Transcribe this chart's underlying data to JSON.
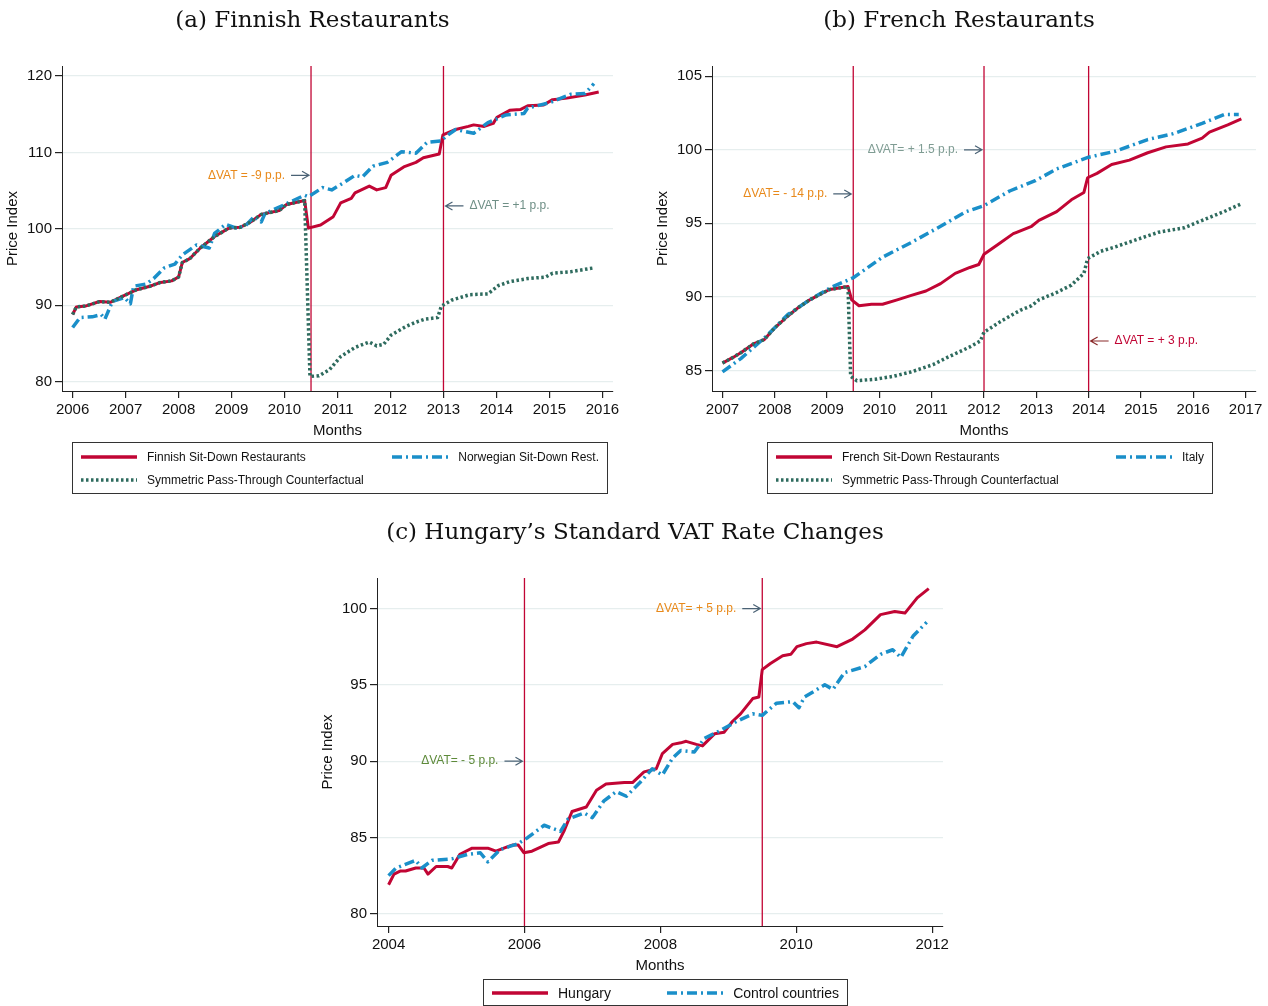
{
  "chart_data": [
    {
      "type": "line",
      "title": "(a) Finnish Restaurants",
      "xlabel": "Months",
      "ylabel": "Price Index",
      "xlim": [
        2005.8,
        2016.2
      ],
      "xticks": [
        2006,
        2007,
        2008,
        2009,
        2010,
        2011,
        2012,
        2013,
        2014,
        2015,
        2016
      ],
      "ylim": [
        78.8,
        121.3
      ],
      "yticks": [
        80,
        90,
        100,
        110,
        120
      ],
      "grid": "y",
      "legend": "bottom",
      "marker": "none",
      "ref_lines": [
        {
          "axis": "x",
          "value": 2010.5,
          "color": "#c10534"
        },
        {
          "axis": "x",
          "value": 2013,
          "color": "#c10534"
        }
      ],
      "annotations": [
        {
          "text": "ΔVAT = -9 p.p.",
          "x": 2010.5,
          "y": 107
        },
        {
          "text": "ΔVAT = +1 p.p.",
          "x": 2013,
          "y": 103
        }
      ],
      "series": [
        {
          "name": "Finnish Sit-Down Restaurants",
          "color": "#c10534",
          "line_style": "solid",
          "x": [
            2006.0,
            2006.07,
            2006.24,
            2006.51,
            2006.71,
            2006.92,
            2007.19,
            2007.46,
            2007.66,
            2007.87,
            2008.0,
            2008.07,
            2008.21,
            2008.41,
            2008.68,
            2008.95,
            2009.16,
            2009.36,
            2009.56,
            2009.9,
            2010.04,
            2010.38,
            2010.45,
            2010.68,
            2010.92,
            2011.06,
            2011.26,
            2011.33,
            2011.6,
            2011.74,
            2011.91,
            2012.01,
            2012.25,
            2012.48,
            2012.62,
            2012.92,
            2012.99,
            2013.23,
            2013.47,
            2013.57,
            2013.77,
            2013.94,
            2014.01,
            2014.25,
            2014.45,
            2014.59,
            2014.89,
            2015.06,
            2015.33,
            2015.67,
            2015.93
          ],
          "values": [
            88.8,
            89.8,
            89.9,
            90.5,
            90.4,
            91.1,
            92.0,
            92.5,
            93.0,
            93.2,
            93.7,
            95.6,
            96.1,
            97.5,
            99.0,
            100.1,
            100.2,
            100.9,
            101.9,
            102.4,
            103.2,
            103.7,
            100.1,
            100.5,
            101.6,
            103.4,
            104.0,
            104.7,
            105.6,
            105.1,
            105.4,
            107.0,
            108.1,
            108.7,
            109.3,
            109.8,
            112.3,
            113.0,
            113.4,
            113.6,
            113.4,
            113.8,
            114.6,
            115.5,
            115.6,
            116.1,
            116.2,
            116.9,
            117.1,
            117.5,
            117.9
          ]
        },
        {
          "name": "Norwegian Sit-Down Rest.",
          "color": "#1a8fc9",
          "line_style": "dashed",
          "x": [
            2006.0,
            2006.14,
            2006.37,
            2006.54,
            2006.61,
            2006.75,
            2006.98,
            2007.09,
            2007.15,
            2007.39,
            2007.53,
            2007.73,
            2007.93,
            2008.07,
            2008.34,
            2008.58,
            2008.68,
            2008.89,
            2009.09,
            2009.26,
            2009.43,
            2009.56,
            2009.63,
            2010.04,
            2010.38,
            2010.45,
            2010.72,
            2010.89,
            2011.13,
            2011.33,
            2011.47,
            2011.67,
            2011.94,
            2012.21,
            2012.48,
            2012.69,
            2012.96,
            2013.03,
            2013.23,
            2013.57,
            2013.84,
            2014.18,
            2014.52,
            2014.59,
            2015.0,
            2015.4,
            2015.67,
            2015.84
          ],
          "values": [
            87.1,
            88.4,
            88.5,
            88.8,
            88.2,
            90.5,
            91.0,
            90.2,
            92.5,
            92.8,
            93.5,
            94.9,
            95.4,
            96.6,
            97.9,
            97.5,
            99.4,
            100.6,
            100.1,
            100.4,
            101.6,
            100.9,
            102.0,
            103.3,
            104.4,
            104.2,
            105.4,
            105.1,
            106.1,
            107.0,
            106.8,
            108.2,
            108.7,
            110.1,
            109.9,
            111.3,
            111.5,
            112.0,
            113.0,
            112.5,
            113.9,
            114.9,
            115.1,
            115.8,
            116.5,
            117.6,
            117.7,
            119.0
          ]
        },
        {
          "name": "Symmetric Pass-Through Counterfactual",
          "color": "#2e6b5e",
          "line_style": "dotted",
          "x": [
            2006.0,
            2006.07,
            2006.24,
            2006.51,
            2006.71,
            2006.92,
            2007.19,
            2007.46,
            2007.66,
            2007.87,
            2008.0,
            2008.07,
            2008.21,
            2008.41,
            2008.68,
            2008.95,
            2009.16,
            2009.36,
            2009.56,
            2009.9,
            2010.04,
            2010.38,
            2010.48,
            2010.65,
            2010.85,
            2011.06,
            2011.33,
            2011.6,
            2011.74,
            2011.87,
            2012.01,
            2012.28,
            2012.48,
            2012.65,
            2012.89,
            2012.96,
            2013.16,
            2013.5,
            2013.84,
            2014.04,
            2014.25,
            2014.59,
            2014.93,
            2015.06,
            2015.4,
            2015.84
          ],
          "values": [
            88.8,
            89.8,
            89.9,
            90.5,
            90.4,
            91.1,
            92.0,
            92.5,
            93.0,
            93.2,
            93.7,
            95.6,
            96.1,
            97.5,
            99.0,
            100.1,
            100.2,
            100.9,
            101.9,
            102.4,
            103.2,
            103.7,
            80.7,
            80.8,
            81.6,
            83.3,
            84.5,
            85.2,
            84.7,
            84.9,
            86.1,
            87.2,
            87.8,
            88.2,
            88.4,
            89.9,
            90.7,
            91.4,
            91.5,
            92.6,
            93.1,
            93.5,
            93.7,
            94.2,
            94.4,
            94.9
          ]
        }
      ]
    },
    {
      "type": "line",
      "title": "(b) French Restaurants",
      "xlabel": "Months",
      "ylabel": "Price Index",
      "xlim": [
        2006.8,
        2017.2
      ],
      "xticks": [
        2007,
        2008,
        2009,
        2010,
        2011,
        2012,
        2013,
        2014,
        2015,
        2016,
        2017
      ],
      "ylim": [
        83.6,
        105.7
      ],
      "yticks": [
        85,
        90,
        95,
        100,
        105
      ],
      "grid": "y",
      "legend": "bottom",
      "marker": "none",
      "ref_lines": [
        {
          "axis": "x",
          "value": 2009.5,
          "color": "#c10534"
        },
        {
          "axis": "x",
          "value": 2012,
          "color": "#c10534"
        },
        {
          "axis": "x",
          "value": 2014,
          "color": "#c10534"
        }
      ],
      "annotations": [
        {
          "text": "ΔVAT= + 1.5 p.p.",
          "x": 2012,
          "y": 100
        },
        {
          "text": "ΔVAT= - 14 p.p.",
          "x": 2009.5,
          "y": 97
        },
        {
          "text": "ΔVAT = + 3 p.p.",
          "x": 2014,
          "y": 87
        }
      ],
      "series": [
        {
          "name": "French Sit-Down Restaurants",
          "color": "#c10534",
          "line_style": "solid",
          "x": [
            2007.0,
            2007.21,
            2007.35,
            2007.59,
            2007.8,
            2008.0,
            2008.25,
            2008.46,
            2008.67,
            2008.88,
            2009.05,
            2009.4,
            2009.47,
            2009.61,
            2009.85,
            2010.06,
            2010.34,
            2010.61,
            2010.89,
            2011.17,
            2011.45,
            2011.73,
            2011.9,
            2012.0,
            2012.28,
            2012.56,
            2012.91,
            2013.05,
            2013.39,
            2013.67,
            2013.91,
            2013.98,
            2014.16,
            2014.44,
            2014.78,
            2015.13,
            2015.48,
            2015.9,
            2016.17,
            2016.31,
            2016.66,
            2016.92
          ],
          "values": [
            85.5,
            85.9,
            86.2,
            86.8,
            87.1,
            87.9,
            88.7,
            89.3,
            89.8,
            90.2,
            90.5,
            90.7,
            89.8,
            89.4,
            89.5,
            89.5,
            89.8,
            90.1,
            90.4,
            90.9,
            91.6,
            92.0,
            92.2,
            92.9,
            93.6,
            94.3,
            94.8,
            95.2,
            95.8,
            96.6,
            97.1,
            98.1,
            98.4,
            99.0,
            99.3,
            99.8,
            100.2,
            100.4,
            100.8,
            101.2,
            101.7,
            102.1
          ]
        },
        {
          "name": "Italy",
          "color": "#1a8fc9",
          "line_style": "dashed",
          "x": [
            2007.0,
            2007.35,
            2007.83,
            2008.25,
            2008.67,
            2009.05,
            2009.5,
            2010.06,
            2010.61,
            2011.17,
            2011.66,
            2012.0,
            2012.49,
            2012.98,
            2013.39,
            2014.0,
            2014.51,
            2015.13,
            2015.62,
            2016.17,
            2016.59,
            2016.87
          ],
          "values": [
            84.9,
            85.8,
            87.3,
            88.8,
            89.8,
            90.6,
            91.3,
            92.7,
            93.7,
            94.8,
            95.8,
            96.2,
            97.2,
            97.9,
            98.7,
            99.5,
            99.9,
            100.7,
            101.1,
            101.8,
            102.4,
            102.4
          ]
        },
        {
          "name": "Symmetric Pass-Through Counterfactual",
          "color": "#2e6b5e",
          "line_style": "dotted",
          "x": [
            2007.0,
            2007.21,
            2007.35,
            2007.59,
            2007.8,
            2008.0,
            2008.25,
            2008.46,
            2008.67,
            2008.88,
            2009.05,
            2009.4,
            2009.45,
            2009.57,
            2009.92,
            2010.27,
            2010.61,
            2011.03,
            2011.31,
            2011.73,
            2011.93,
            2012.0,
            2012.35,
            2012.7,
            2012.91,
            2013.05,
            2013.39,
            2013.67,
            2013.91,
            2013.98,
            2014.23,
            2014.51,
            2014.92,
            2015.34,
            2015.83,
            2016.1,
            2016.24,
            2016.59,
            2016.9
          ],
          "values": [
            85.5,
            85.9,
            86.2,
            86.8,
            87.1,
            87.9,
            88.7,
            89.3,
            89.8,
            90.2,
            90.5,
            90.7,
            84.6,
            84.3,
            84.4,
            84.6,
            84.9,
            85.4,
            85.9,
            86.6,
            87.0,
            87.6,
            88.4,
            89.1,
            89.4,
            89.8,
            90.3,
            90.8,
            91.6,
            92.6,
            93.1,
            93.4,
            93.9,
            94.4,
            94.7,
            95.1,
            95.3,
            95.8,
            96.3
          ]
        }
      ]
    },
    {
      "type": "line",
      "title": "(c) Hungary’s Standard VAT Rate Changes",
      "xlabel": "Months",
      "ylabel": "Price Index",
      "xlim": [
        2003.83,
        2012.16
      ],
      "xticks": [
        2004,
        2006,
        2008,
        2010,
        2012
      ],
      "ylim": [
        79.2,
        102
      ],
      "yticks": [
        80,
        85,
        90,
        95,
        100
      ],
      "grid": "y",
      "legend": "bottom",
      "marker": "none",
      "ref_lines": [
        {
          "axis": "x",
          "value": 2006,
          "color": "#c10534"
        },
        {
          "axis": "x",
          "value": 2009.5,
          "color": "#c10534"
        }
      ],
      "annotations": [
        {
          "text": "ΔVAT= + 5 p.p.",
          "x": 2009.5,
          "y": 100
        },
        {
          "text": "ΔVAT= - 5 p.p.",
          "x": 2006,
          "y": 90
        }
      ],
      "series": [
        {
          "name": "Hungary",
          "color": "#c10534",
          "line_style": "solid",
          "x": [
            2004.0,
            2004.08,
            2004.17,
            2004.25,
            2004.4,
            2004.52,
            2004.58,
            2004.7,
            2004.87,
            2004.93,
            2005.05,
            2005.23,
            2005.46,
            2005.58,
            2005.82,
            2005.91,
            2005.99,
            2006.11,
            2006.35,
            2006.5,
            2006.58,
            2006.7,
            2006.91,
            2007.06,
            2007.2,
            2007.47,
            2007.59,
            2007.76,
            2007.94,
            2008.03,
            2008.18,
            2008.3,
            2008.38,
            2008.53,
            2008.62,
            2008.8,
            2008.94,
            2009.06,
            2009.18,
            2009.36,
            2009.45,
            2009.5,
            2009.62,
            2009.8,
            2009.92,
            2010.01,
            2010.15,
            2010.3,
            2010.6,
            2010.83,
            2011.01,
            2011.24,
            2011.45,
            2011.6,
            2011.78,
            2011.95
          ],
          "values": [
            81.9,
            82.6,
            82.8,
            82.8,
            83.0,
            83.0,
            82.6,
            83.1,
            83.1,
            83.0,
            83.9,
            84.3,
            84.3,
            84.1,
            84.5,
            84.5,
            84.0,
            84.1,
            84.6,
            84.7,
            85.4,
            86.7,
            87.0,
            88.1,
            88.5,
            88.6,
            88.6,
            89.3,
            89.5,
            90.5,
            91.1,
            91.2,
            91.3,
            91.1,
            91.0,
            91.8,
            91.9,
            92.6,
            93.1,
            94.1,
            94.2,
            96.0,
            96.4,
            96.9,
            97.0,
            97.5,
            97.7,
            97.8,
            97.5,
            98.0,
            98.6,
            99.6,
            99.8,
            99.7,
            100.7,
            101.3
          ]
        },
        {
          "name": "Control countries",
          "color": "#1a8fc9",
          "line_style": "dashed",
          "x": [
            2004.0,
            2004.11,
            2004.34,
            2004.4,
            2004.49,
            2004.64,
            2004.93,
            2005.17,
            2005.35,
            2005.46,
            2005.64,
            2005.91,
            2006.05,
            2006.29,
            2006.53,
            2006.64,
            2006.88,
            2007.0,
            2007.17,
            2007.35,
            2007.5,
            2007.7,
            2007.88,
            2008.03,
            2008.18,
            2008.3,
            2008.5,
            2008.65,
            2008.88,
            2009.12,
            2009.36,
            2009.5,
            2009.71,
            2009.95,
            2010.04,
            2010.12,
            2010.42,
            2010.54,
            2010.71,
            2011.01,
            2011.24,
            2011.42,
            2011.54,
            2011.72,
            2011.92
          ],
          "values": [
            82.5,
            83.0,
            83.4,
            83.5,
            83.0,
            83.5,
            83.6,
            83.9,
            84.0,
            83.4,
            84.2,
            84.6,
            85.0,
            85.8,
            85.4,
            86.2,
            86.6,
            86.3,
            87.4,
            88.0,
            87.7,
            88.6,
            89.5,
            89.1,
            90.2,
            90.7,
            90.6,
            91.5,
            92.0,
            92.6,
            93.1,
            93.0,
            93.8,
            93.9,
            93.5,
            94.2,
            95.0,
            94.7,
            95.8,
            96.2,
            97.0,
            97.3,
            96.8,
            98.2,
            99.1
          ]
        }
      ]
    }
  ]
}
